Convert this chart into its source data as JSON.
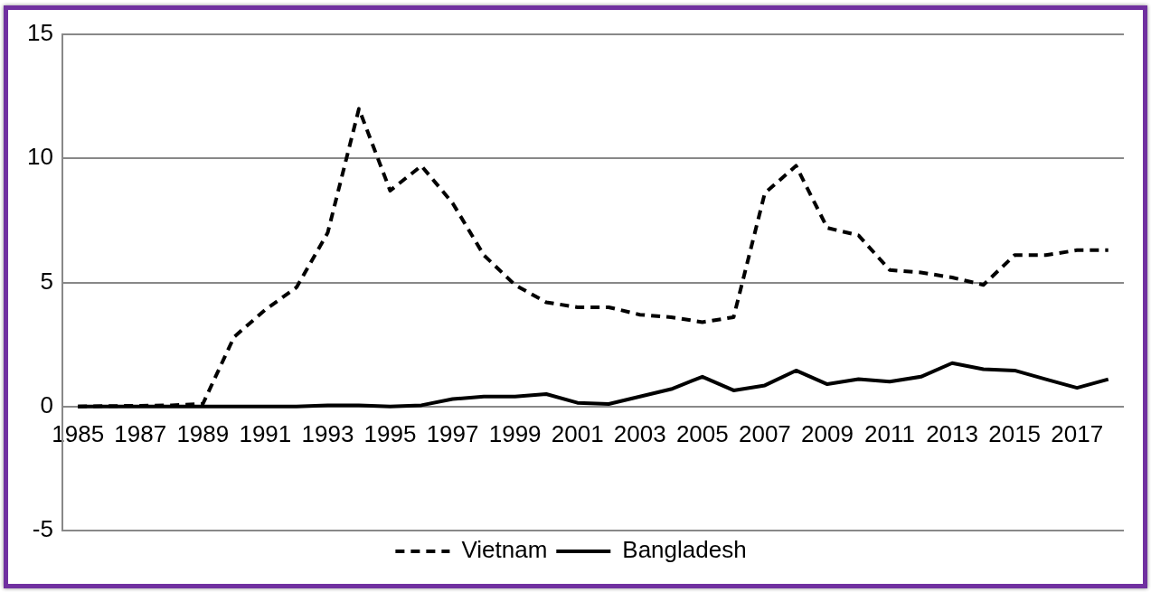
{
  "chart_data": {
    "type": "line",
    "categories": [
      "1985",
      null,
      "1987",
      null,
      "1989",
      null,
      "1991",
      null,
      "1993",
      null,
      "1995",
      null,
      "1997",
      null,
      "1999",
      null,
      "2001",
      null,
      "2003",
      null,
      "2005",
      null,
      "2007",
      null,
      "2009",
      null,
      "2011",
      null,
      "2013",
      null,
      "2015",
      null,
      "2017",
      null
    ],
    "series": [
      {
        "name": "Vietnam",
        "color": "#000000",
        "line_style": "dashed",
        "values": [
          0,
          0.02,
          0.03,
          0.05,
          0.1,
          2.8,
          3.9,
          4.8,
          7.0,
          12.0,
          8.7,
          9.7,
          8.2,
          6.1,
          4.9,
          4.2,
          4.0,
          4.0,
          3.7,
          3.6,
          3.4,
          3.6,
          8.6,
          9.7,
          7.2,
          6.9,
          5.5,
          5.4,
          5.2,
          4.9,
          6.1,
          6.1,
          6.3,
          6.3
        ]
      },
      {
        "name": "Bangladesh",
        "color": "#000000",
        "line_style": "solid",
        "values": [
          0,
          0,
          0,
          0,
          0,
          0,
          0,
          0,
          0.05,
          0.05,
          0,
          0.05,
          0.3,
          0.4,
          0.4,
          0.5,
          0.15,
          0.1,
          0.4,
          0.7,
          1.2,
          0.65,
          0.85,
          1.45,
          0.9,
          1.1,
          1.0,
          1.2,
          1.75,
          1.5,
          1.45,
          1.1,
          0.75,
          1.1
        ]
      }
    ],
    "ylim": [
      -5,
      15
    ],
    "yticks": [
      -5,
      0,
      5,
      10,
      15
    ],
    "grid": "y",
    "legend": "bottom",
    "marker": "none"
  }
}
